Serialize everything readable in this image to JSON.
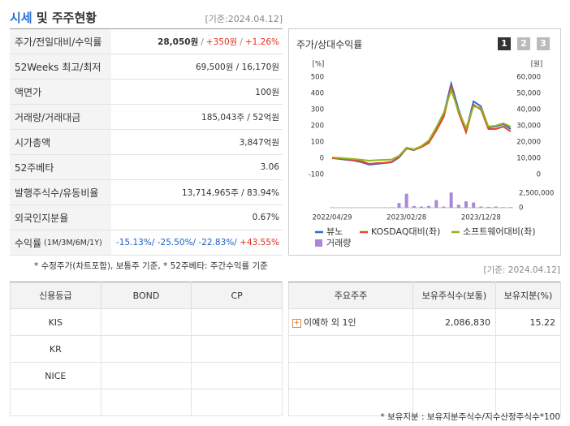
{
  "header": {
    "title_parts": [
      "시세",
      "및 주주현황"
    ],
    "date": "[기준:2024.04.12]"
  },
  "summary": {
    "rows": [
      {
        "label": "주가/전일대비/수익률",
        "value": [
          "28,050원",
          "/",
          "+350원",
          "/",
          "+1.26%"
        ]
      },
      {
        "label": "52Weeks 최고/최저",
        "value": "69,500원 / 16,170원"
      },
      {
        "label": "액면가",
        "value": "100원"
      },
      {
        "label": "거래량/거래대금",
        "value": "185,043주 / 52억원"
      },
      {
        "label": "시가총액",
        "value": "3,847억원"
      },
      {
        "label": "52주베타",
        "value": "3.06"
      },
      {
        "label": "발행주식수/유동비율",
        "value": "13,714,965주 / 83.94%"
      },
      {
        "label": "외국인지분율",
        "value": "0.67%"
      },
      {
        "label": "수익률",
        "sublabel": "(1M/3M/6M/1Y)",
        "value": [
          "-15.13%/",
          "-25.50%/",
          "-22.83%/",
          "+43.55%"
        ]
      }
    ],
    "note": "* 수정주가(차트포함), 보통주 기준, * 52주베타: 주간수익률 기준"
  },
  "chart_panel": {
    "title": "주가/상대수익률",
    "tabs": [
      "1",
      "2",
      "3"
    ]
  },
  "chart_data": [
    {
      "type": "line",
      "ylabel": "[%]",
      "y2label": "[원]",
      "categories": [
        "2022/04/29",
        null,
        null,
        null,
        null,
        null,
        null,
        null,
        null,
        null,
        "2023/02/28",
        null,
        null,
        null,
        null,
        null,
        null,
        null,
        null,
        null,
        "2023/12/28",
        null,
        null,
        null,
        null
      ],
      "ylim": [
        -100,
        500
      ],
      "yticks": [
        500,
        400,
        300,
        200,
        100,
        0,
        -100
      ],
      "y2lim": [
        0,
        60000
      ],
      "y2ticks": [
        {
          "value": 60000,
          "label": "60,000"
        },
        {
          "value": 50000,
          "label": "50,000"
        },
        {
          "value": 40000,
          "label": "40,000"
        },
        {
          "value": 30000,
          "label": "30,000"
        },
        {
          "value": 20000,
          "label": "20,000"
        },
        {
          "value": 10000,
          "label": "10,000"
        },
        0
      ],
      "legend": "bottom",
      "series": [
        {
          "name": "뷰노",
          "color": "#2f6ad0",
          "values": [
            2,
            -5,
            -10,
            -15,
            -25,
            -40,
            -35,
            -30,
            -25,
            5,
            60,
            50,
            70,
            100,
            180,
            270,
            460,
            300,
            170,
            350,
            320,
            190,
            195,
            210,
            180
          ]
        },
        {
          "name": "KOSDAQ대비(좌)",
          "color": "#e0482a",
          "values": [
            0,
            -3,
            -8,
            -12,
            -20,
            -35,
            -30,
            -28,
            -22,
            8,
            60,
            52,
            68,
            95,
            170,
            255,
            440,
            280,
            160,
            330,
            300,
            180,
            180,
            195,
            165
          ]
        },
        {
          "name": "소프트웨어대비(좌)",
          "color": "#8fb51c",
          "values": [
            5,
            2,
            -2,
            -5,
            -10,
            -15,
            -12,
            -10,
            -8,
            15,
            65,
            55,
            75,
            110,
            190,
            280,
            420,
            290,
            185,
            320,
            310,
            195,
            200,
            215,
            195
          ]
        }
      ]
    },
    {
      "type": "bar",
      "ylim": [
        0,
        2500000
      ],
      "yticks": [
        {
          "value": 2500000,
          "label": "2,500,000"
        },
        0
      ],
      "series": [
        {
          "name": "거래량",
          "color": "#a988d6",
          "values": [
            50000,
            40000,
            30000,
            30000,
            40000,
            30000,
            30000,
            50000,
            60000,
            800000,
            2400000,
            300000,
            200000,
            300000,
            1300000,
            200000,
            2600000,
            500000,
            1100000,
            900000,
            200000,
            150000,
            200000,
            100000,
            100000
          ]
        }
      ]
    }
  ],
  "base_date": "[기준: 2024.04.12]",
  "credit": {
    "columns": [
      "신용등급",
      "BOND",
      "CP"
    ],
    "rows": [
      [
        "KIS"
      ],
      [
        "KR"
      ],
      [
        "NICE"
      ]
    ]
  },
  "holders": {
    "columns": [
      "주요주주",
      "보유주식수(보통)",
      "보유지분(%)"
    ],
    "rows": [
      [
        "이예하 외 1인",
        "2,086,830",
        "15.22"
      ]
    ],
    "note": "* 보유지분 : 보유지분주식수/지수산정주식수*100"
  }
}
